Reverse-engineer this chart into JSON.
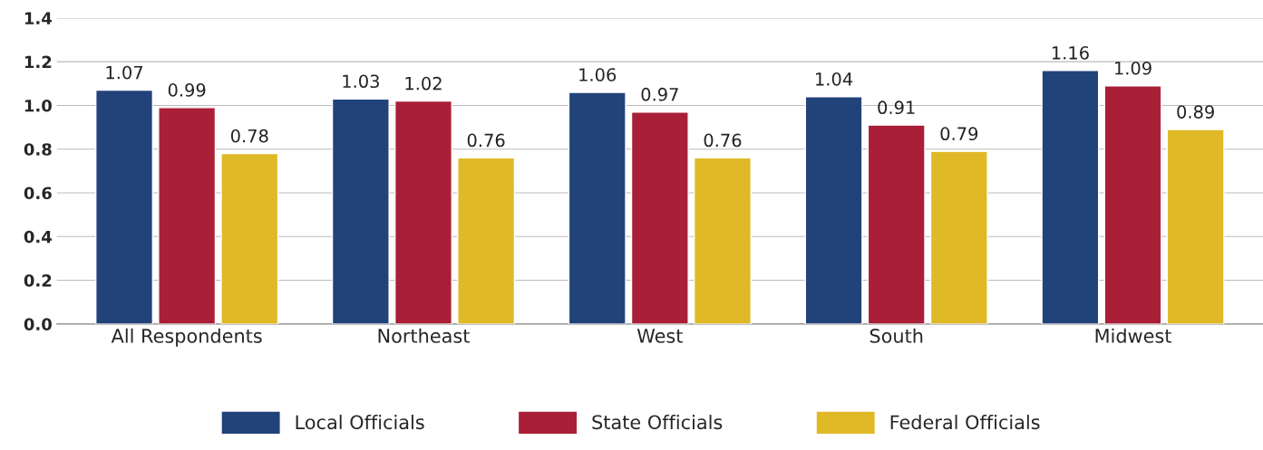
{
  "chart_data": {
    "type": "bar",
    "categories": [
      "All Respondents",
      "Northeast",
      "West",
      "South",
      "Midwest"
    ],
    "series": [
      {
        "name": "Local Officials",
        "color": "#22427a",
        "values": [
          1.07,
          1.03,
          1.06,
          1.04,
          1.16
        ]
      },
      {
        "name": "State Officials",
        "color": "#a91f37",
        "values": [
          0.99,
          1.02,
          0.97,
          0.91,
          1.09
        ]
      },
      {
        "name": "Federal Officials",
        "color": "#e0b927",
        "values": [
          0.78,
          0.76,
          0.76,
          0.79,
          0.89
        ]
      }
    ],
    "ylim": [
      0,
      1.4
    ],
    "yticks": [
      "0.0",
      "0.2",
      "0.4",
      "0.6",
      "0.8",
      "1.0",
      "1.2",
      "1.4"
    ],
    "grid": "y",
    "legend": "bottom",
    "data_labels": true
  }
}
